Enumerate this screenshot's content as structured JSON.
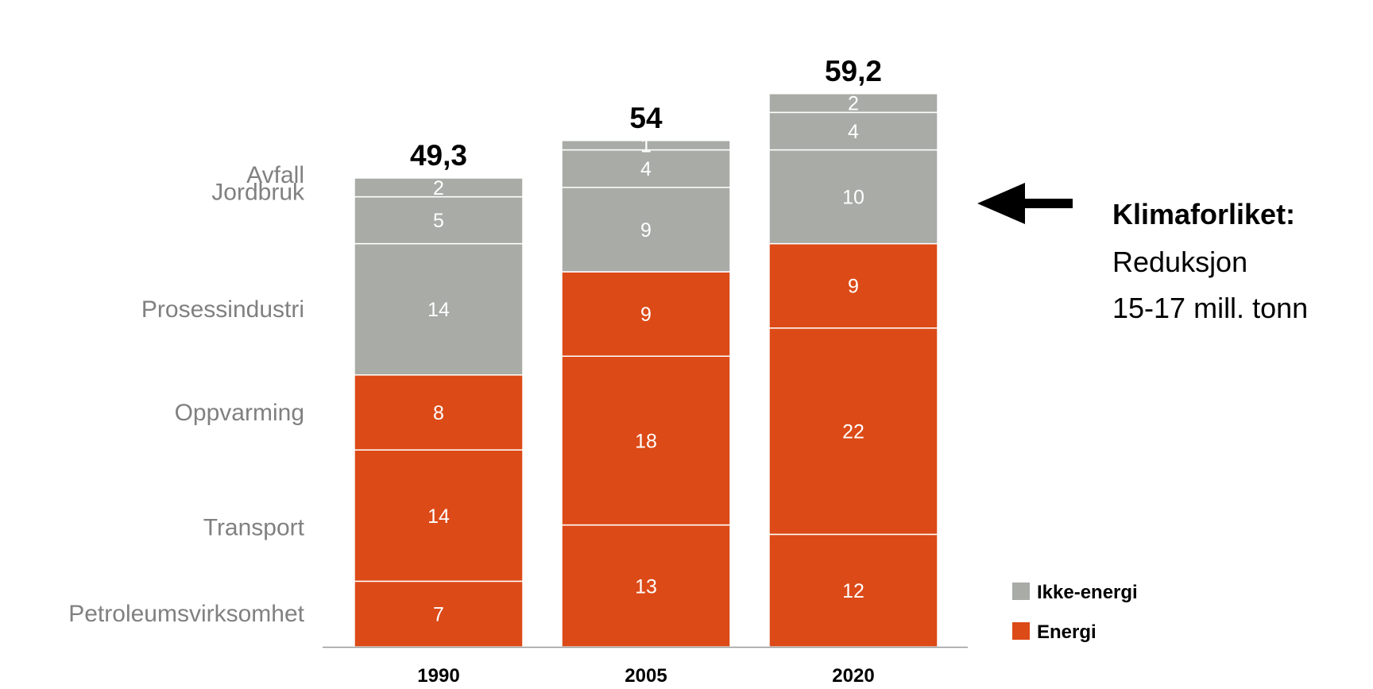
{
  "chart_data": {
    "type": "bar",
    "stacked": true,
    "categories": [
      "1990",
      "2005",
      "2020"
    ],
    "series": [
      {
        "name": "Petroleumsvirksomhet",
        "group": "Energi",
        "values": [
          7,
          13,
          12
        ]
      },
      {
        "name": "Transport",
        "group": "Energi",
        "values": [
          14,
          18,
          22
        ]
      },
      {
        "name": "Oppvarming",
        "group": "Energi",
        "values": [
          8,
          9,
          9
        ]
      },
      {
        "name": "Prosessindustri",
        "group": "Ikke-energi",
        "values": [
          14,
          9,
          10
        ]
      },
      {
        "name": "Jordbruk",
        "group": "Ikke-energi",
        "values": [
          5,
          4,
          4
        ]
      },
      {
        "name": "Avfall",
        "group": "Ikke-energi",
        "values": [
          2,
          1,
          2
        ]
      }
    ],
    "segment_labels": [
      [
        "7",
        "13",
        "12"
      ],
      [
        "14",
        "18",
        "22"
      ],
      [
        "8",
        "9",
        "9"
      ],
      [
        "14",
        "9",
        "10"
      ],
      [
        "5",
        "4",
        "4"
      ],
      [
        "2",
        "1",
        "2"
      ]
    ],
    "totals": [
      "49,3",
      "54",
      "59,2"
    ],
    "legend": [
      {
        "name": "Ikke-energi",
        "color": "#A8ABA6"
      },
      {
        "name": "Energi",
        "color": "#DC4A17"
      }
    ],
    "colors": {
      "energi": "#DC4A17",
      "ikke_energi": "#A8ABA6",
      "category_text": "#808080"
    },
    "legend_position": "bottom-right",
    "grid": false,
    "ylim": [
      0,
      60
    ],
    "annotation": {
      "title": "Klimaforliket:",
      "lines": [
        "Reduksjon",
        "15-17 mill. tonn"
      ],
      "arrow": "left-arrow-icon"
    }
  }
}
